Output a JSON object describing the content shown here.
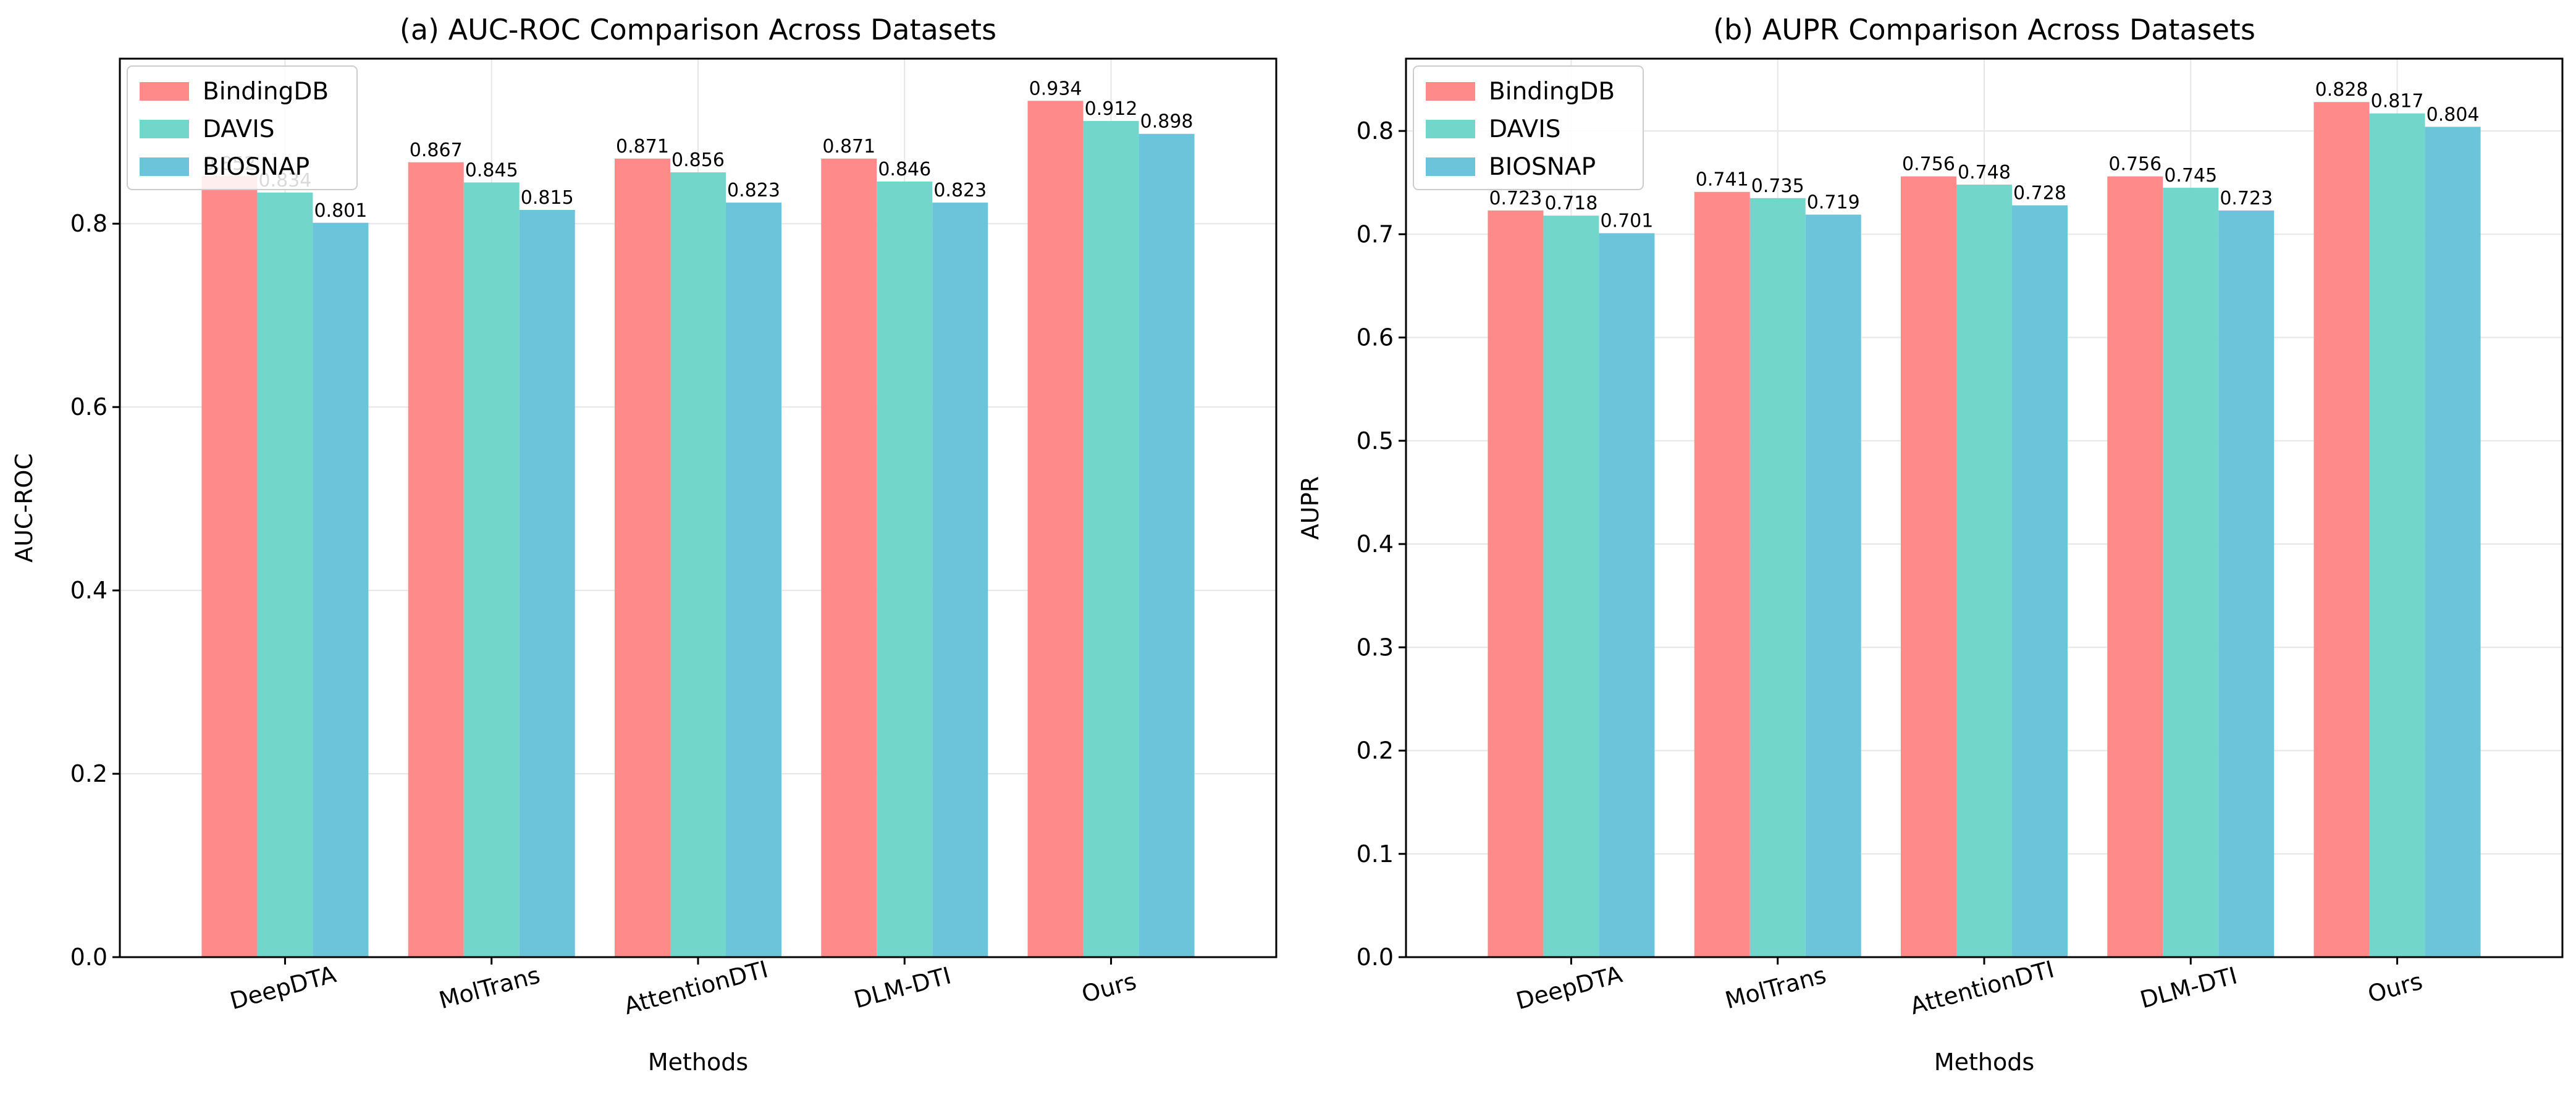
{
  "chart_data": [
    {
      "type": "bar",
      "title": "(a) AUC-ROC Comparison Across Datasets",
      "xlabel": "Methods",
      "ylabel": "AUC-ROC",
      "ylim": [
        0,
        0.98
      ],
      "yticks": [
        0.0,
        0.2,
        0.4,
        0.6,
        0.8
      ],
      "grid": true,
      "legend_position": "top-left",
      "categories": [
        "DeepDTA",
        "MolTrans",
        "AttentionDTI",
        "DLM-DTI",
        "Ours"
      ],
      "series": [
        {
          "name": "BindingDB",
          "color": "#ff8a8a",
          "values": [
            0.852,
            0.867,
            0.871,
            0.871,
            0.934
          ]
        },
        {
          "name": "DAVIS",
          "color": "#72d6ca",
          "values": [
            0.834,
            0.845,
            0.856,
            0.846,
            0.912
          ]
        },
        {
          "name": "BIOSNAP",
          "color": "#6bc4d9",
          "values": [
            0.801,
            0.815,
            0.823,
            0.823,
            0.898
          ]
        }
      ]
    },
    {
      "type": "bar",
      "title": "(b) AUPR Comparison Across Datasets",
      "xlabel": "Methods",
      "ylabel": "AUPR",
      "ylim": [
        0,
        0.87
      ],
      "yticks": [
        0.0,
        0.1,
        0.2,
        0.3,
        0.4,
        0.5,
        0.6,
        0.7,
        0.8
      ],
      "grid": true,
      "legend_position": "top-left",
      "categories": [
        "DeepDTA",
        "MolTrans",
        "AttentionDTI",
        "DLM-DTI",
        "Ours"
      ],
      "series": [
        {
          "name": "BindingDB",
          "color": "#ff8a8a",
          "values": [
            0.723,
            0.741,
            0.756,
            0.756,
            0.828
          ]
        },
        {
          "name": "DAVIS",
          "color": "#72d6ca",
          "values": [
            0.718,
            0.735,
            0.748,
            0.745,
            0.817
          ]
        },
        {
          "name": "BIOSNAP",
          "color": "#6bc4d9",
          "values": [
            0.701,
            0.719,
            0.728,
            0.723,
            0.804
          ]
        }
      ]
    }
  ]
}
